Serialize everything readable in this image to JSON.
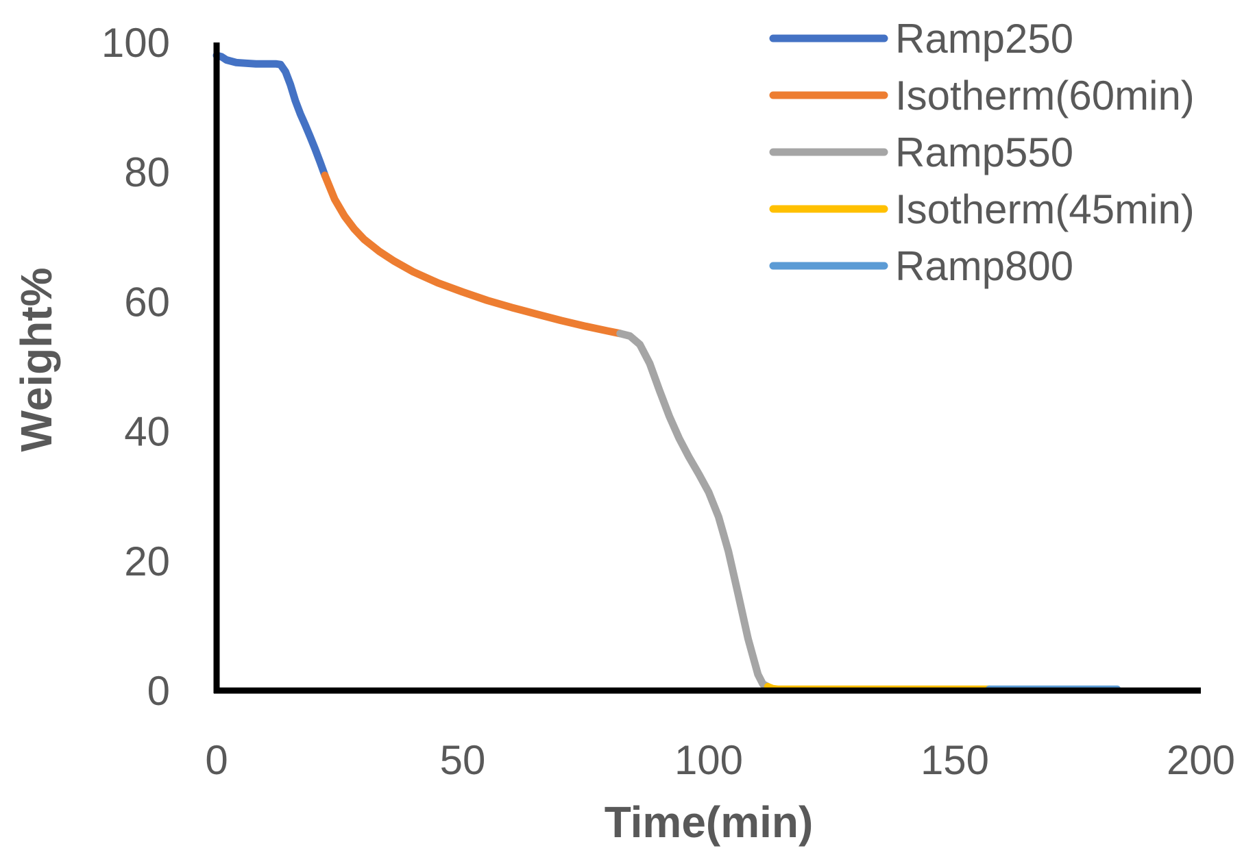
{
  "chart_data": {
    "type": "line",
    "title": "",
    "xlabel": "Time(min)",
    "ylabel": "Weight%",
    "xlim": [
      0,
      200
    ],
    "ylim": [
      0,
      100
    ],
    "x_ticks": [
      0,
      50,
      100,
      150,
      200
    ],
    "y_ticks": [
      0,
      20,
      40,
      60,
      80,
      100
    ],
    "grid": false,
    "legend_position": "top-right",
    "series": [
      {
        "name": "Ramp250",
        "color": "#4472C4",
        "points": [
          [
            0,
            98
          ],
          [
            1,
            97.8
          ],
          [
            2,
            97.3
          ],
          [
            4,
            96.9
          ],
          [
            6,
            96.8
          ],
          [
            8,
            96.7
          ],
          [
            10,
            96.7
          ],
          [
            12,
            96.7
          ],
          [
            13,
            96.6
          ],
          [
            14,
            95.5
          ],
          [
            15,
            93.5
          ],
          [
            16,
            91
          ],
          [
            17,
            89
          ],
          [
            18,
            87.3
          ],
          [
            19,
            85.5
          ],
          [
            20,
            83.6
          ],
          [
            21,
            81.6
          ],
          [
            22,
            79.5
          ]
        ]
      },
      {
        "name": "Isotherm(60min)",
        "color": "#ED7D31",
        "points": [
          [
            22,
            79.5
          ],
          [
            24,
            75.8
          ],
          [
            26,
            73.2
          ],
          [
            28,
            71.2
          ],
          [
            30,
            69.6
          ],
          [
            33,
            67.8
          ],
          [
            36,
            66.3
          ],
          [
            40,
            64.6
          ],
          [
            45,
            62.9
          ],
          [
            50,
            61.5
          ],
          [
            55,
            60.2
          ],
          [
            60,
            59.1
          ],
          [
            65,
            58.1
          ],
          [
            70,
            57.1
          ],
          [
            75,
            56.2
          ],
          [
            80,
            55.4
          ],
          [
            82,
            55.1
          ]
        ]
      },
      {
        "name": "Ramp550",
        "color": "#A5A5A5",
        "points": [
          [
            82,
            55.1
          ],
          [
            84,
            54.7
          ],
          [
            86,
            53.4
          ],
          [
            88,
            50.5
          ],
          [
            90,
            46.3
          ],
          [
            92,
            42.3
          ],
          [
            94,
            38.9
          ],
          [
            96,
            36
          ],
          [
            98,
            33.4
          ],
          [
            100,
            30.6
          ],
          [
            102,
            26.8
          ],
          [
            104,
            21.5
          ],
          [
            106,
            14.8
          ],
          [
            108,
            8
          ],
          [
            110,
            2.5
          ],
          [
            111,
            1
          ],
          [
            112,
            0.6
          ]
        ]
      },
      {
        "name": "Isotherm(45min)",
        "color": "#FFC000",
        "points": [
          [
            112,
            0.6
          ],
          [
            113,
            0.3
          ],
          [
            114,
            0.2
          ],
          [
            120,
            0.2
          ],
          [
            130,
            0.2
          ],
          [
            140,
            0.2
          ],
          [
            150,
            0.2
          ],
          [
            157,
            0.2
          ]
        ]
      },
      {
        "name": "Ramp800",
        "color": "#5B9BD5",
        "points": [
          [
            157,
            0.2
          ],
          [
            165,
            0.2
          ],
          [
            175,
            0.2
          ],
          [
            183,
            0.2
          ]
        ]
      }
    ]
  }
}
